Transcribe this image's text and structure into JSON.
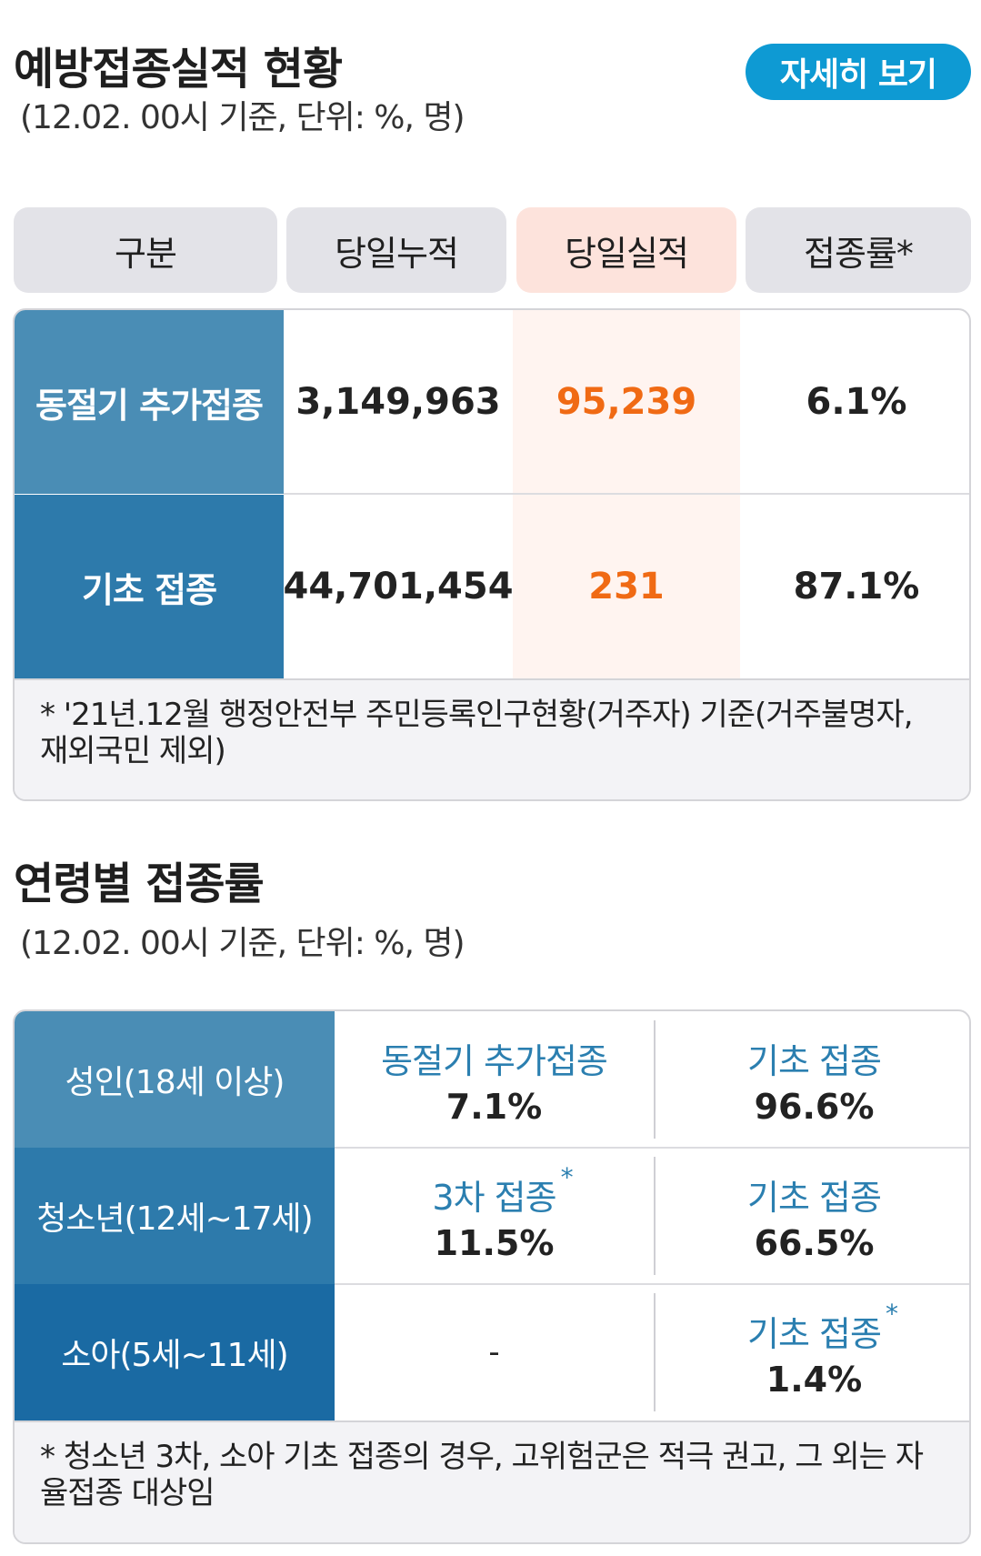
{
  "section1": {
    "title": "예방접종실적 현황",
    "subtitle": "(12.02. 00시 기준, 단위: %, 명)",
    "detail_button": "자세히 보기",
    "headers": [
      "구분",
      "당일누적",
      "당일실적",
      "접종률*"
    ],
    "rows": [
      {
        "label": "동절기 추가접종",
        "cumulative": "3,149,963",
        "today": "95,239",
        "rate": "6.1%",
        "label_color": "#4a8db5"
      },
      {
        "label": "기초 접종",
        "cumulative": "44,701,454",
        "today": "231",
        "rate": "87.1%",
        "label_color": "#2d7aab"
      }
    ],
    "note": "* '21년.12월 행정안전부 주민등록인구현황(거주자) 기준(거주불명자, 재외국민 제외)"
  },
  "section2": {
    "title": "연령별 접종률",
    "subtitle": "(12.02. 00시 기준, 단위: %, 명)",
    "rows": [
      {
        "label": "성인(18세 이상)",
        "c1_title": "동절기 추가접종",
        "c1_value": "7.1%",
        "c2_title": "기초 접종",
        "c2_value": "96.6%",
        "label_color": "#4a8db5"
      },
      {
        "label": "청소년(12세~17세)",
        "c1_title": "3차 접종",
        "c1_value": "11.5%",
        "c2_title": "기초 접종",
        "c2_value": "66.5%",
        "label_color": "#2d7aab"
      },
      {
        "label": "소아(5세~11세)",
        "c1_title": "",
        "c1_value": "-",
        "c2_title": "기초 접종",
        "c2_value": "1.4%",
        "label_color": "#1a6aa3"
      }
    ],
    "note": "* 청소년 3차, 소아 기초 접종의 경우, 고위험군은 적극 권고, 그 외는 자율접종 대상임"
  },
  "colors": {
    "accent": "#0e9ad3",
    "orange": "#f06a14",
    "highlight": "#fde3dc"
  }
}
